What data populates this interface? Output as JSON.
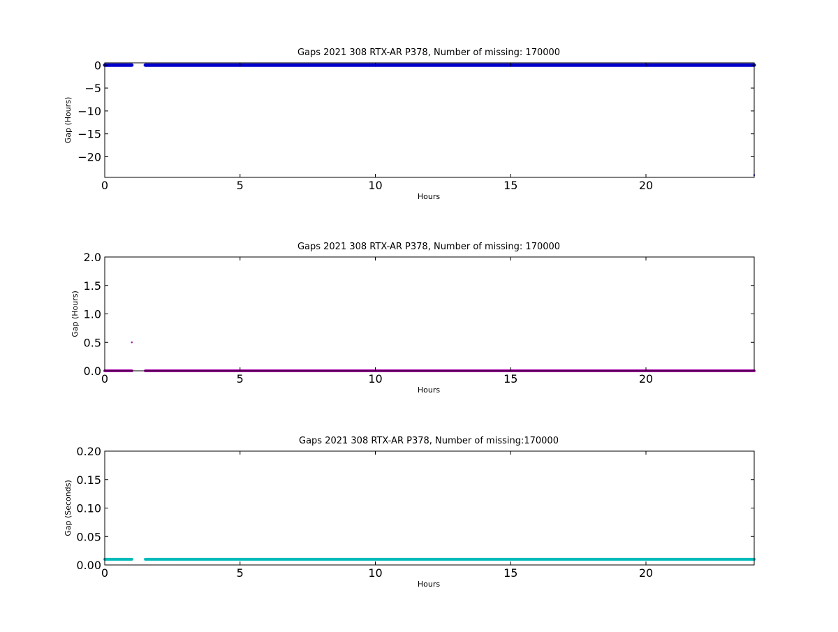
{
  "figure": {
    "background": "#ffffff"
  },
  "chart_data": [
    {
      "type": "scatter",
      "title": "Gaps 2021 308 RTX-AR  P378, Number of missing: 170000",
      "xlabel": "Hours",
      "ylabel": "Gap (Hours)",
      "xlim": [
        0,
        24
      ],
      "ylim": [
        -24.5,
        0.5
      ],
      "xticks": [
        0,
        5,
        10,
        15,
        20
      ],
      "xtick_labels": [
        "0",
        "5",
        "10",
        "15",
        "20"
      ],
      "yticks": [
        0,
        -5,
        -10,
        -15,
        -20
      ],
      "ytick_labels": [
        "0",
        "−5",
        "−10",
        "−15",
        "−20"
      ],
      "grid": false,
      "color": "#0000cc",
      "series": [
        {
          "segments": [
            {
              "x_start": 0.0,
              "x_end": 1.0,
              "y": 0.0
            },
            {
              "x_start": 1.5,
              "x_end": 24.0,
              "y": 0.0
            }
          ],
          "points": [
            {
              "x": 24.0,
              "y": -24.0
            }
          ]
        }
      ]
    },
    {
      "type": "scatter",
      "title": "Gaps 2021 308 RTX-AR  P378, Number of missing: 170000",
      "xlabel": "Hours",
      "ylabel": "Gap (Hours)",
      "xlim": [
        0,
        24
      ],
      "ylim": [
        0,
        2.0
      ],
      "xticks": [
        0,
        5,
        10,
        15,
        20
      ],
      "xtick_labels": [
        "0",
        "5",
        "10",
        "15",
        "20"
      ],
      "yticks": [
        0.0,
        0.5,
        1.0,
        1.5,
        2.0
      ],
      "ytick_labels": [
        "0.0",
        "0.5",
        "1.0",
        "1.5",
        "2.0"
      ],
      "grid": false,
      "color": "#aa00aa",
      "series": [
        {
          "segments": [
            {
              "x_start": 0.0,
              "x_end": 1.0,
              "y": 0.0
            },
            {
              "x_start": 1.5,
              "x_end": 24.0,
              "y": 0.0
            }
          ],
          "points": [
            {
              "x": 1.0,
              "y": 0.5
            }
          ]
        }
      ]
    },
    {
      "type": "scatter",
      "title": "Gaps 2021 308 RTX-AR  P378, Number of missing:170000",
      "xlabel": "Hours",
      "ylabel": "Gap (Seconds)",
      "xlim": [
        0,
        24
      ],
      "ylim": [
        0,
        0.2
      ],
      "xticks": [
        0,
        5,
        10,
        15,
        20
      ],
      "xtick_labels": [
        "0",
        "5",
        "10",
        "15",
        "20"
      ],
      "yticks": [
        0.0,
        0.05,
        0.1,
        0.15,
        0.2
      ],
      "ytick_labels": [
        "0.00",
        "0.05",
        "0.10",
        "0.15",
        "0.20"
      ],
      "grid": false,
      "color": "#00bbbb",
      "series": [
        {
          "segments": [
            {
              "x_start": 0.0,
              "x_end": 1.0,
              "y": 0.01
            },
            {
              "x_start": 1.5,
              "x_end": 24.0,
              "y": 0.01
            }
          ],
          "points": []
        }
      ]
    }
  ]
}
